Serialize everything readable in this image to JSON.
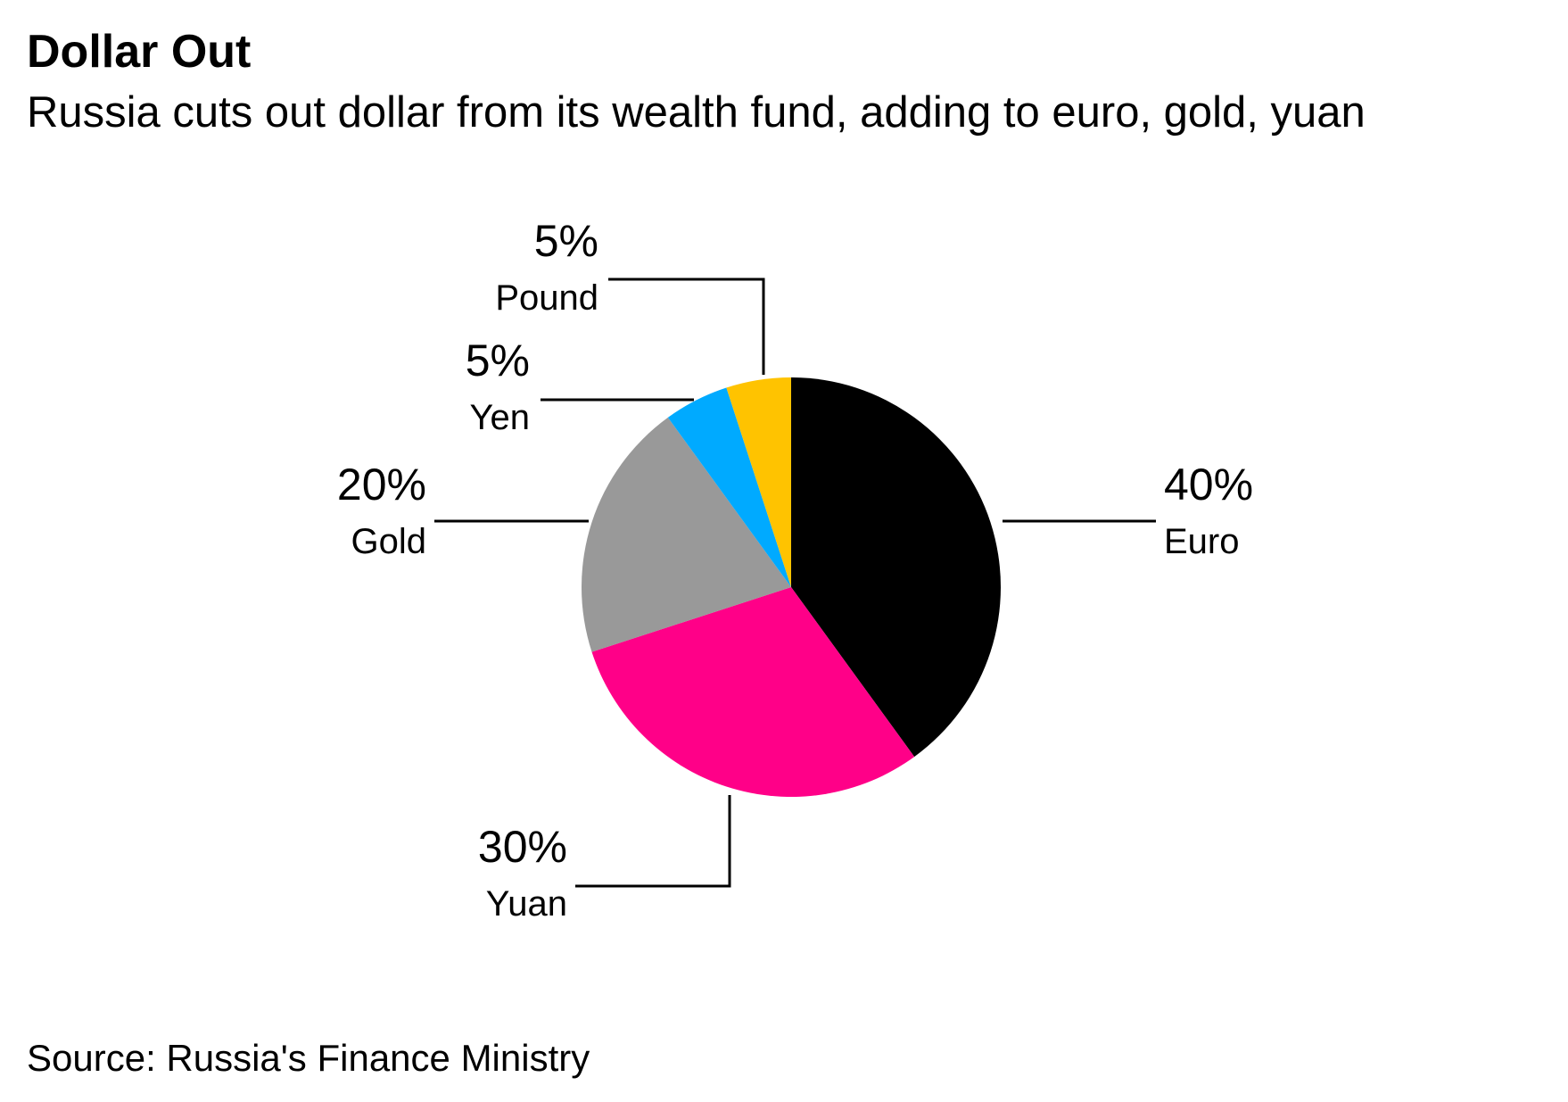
{
  "chart_data": {
    "type": "pie",
    "title": "Dollar Out",
    "subtitle": "Russia cuts out dollar from its wealth fund, adding to euro, gold, yuan",
    "source": "Source: Russia's Finance Ministry",
    "categories": [
      "Euro",
      "Yuan",
      "Gold",
      "Yen",
      "Pound"
    ],
    "values": [
      40,
      30,
      20,
      5,
      5
    ],
    "value_labels": [
      "40%",
      "30%",
      "20%",
      "5%",
      "5%"
    ],
    "colors": [
      "#000000",
      "#ff0088",
      "#999999",
      "#00aaff",
      "#ffc300"
    ],
    "start_angle_deg": 0,
    "direction": "clockwise",
    "legend": "none"
  }
}
